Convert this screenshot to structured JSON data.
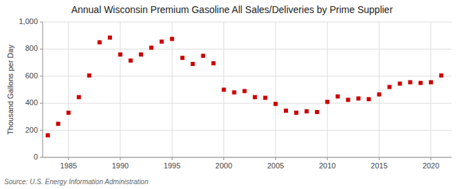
{
  "chart_data": {
    "type": "scatter",
    "title": "Annual Wisconsin Premium Gasoline All Sales/Deliveries by Prime Supplier",
    "ylabel": "Thousand Gallons per Day",
    "source": "Source: U.S. Energy Information Administration",
    "color": "#cc0000",
    "marker": "square",
    "grid": true,
    "x": [
      1983,
      1984,
      1985,
      1986,
      1987,
      1988,
      1989,
      1990,
      1991,
      1992,
      1993,
      1994,
      1995,
      1996,
      1997,
      1998,
      1999,
      2000,
      2001,
      2002,
      2003,
      2004,
      2005,
      2006,
      2007,
      2008,
      2009,
      2010,
      2011,
      2012,
      2013,
      2014,
      2015,
      2016,
      2017,
      2018,
      2019,
      2020,
      2021
    ],
    "values": [
      163,
      248,
      330,
      445,
      605,
      850,
      885,
      760,
      715,
      760,
      810,
      855,
      875,
      735,
      690,
      750,
      695,
      500,
      480,
      490,
      445,
      440,
      395,
      345,
      330,
      340,
      335,
      410,
      450,
      425,
      435,
      430,
      465,
      520,
      545,
      555,
      550,
      555,
      605
    ],
    "xlim": [
      1982.5,
      2022
    ],
    "xticks": [
      1985,
      1990,
      1995,
      2000,
      2005,
      2010,
      2015,
      2020
    ],
    "ylim": [
      0,
      1000
    ],
    "yticks": [
      0,
      200,
      400,
      600,
      800,
      {
        "value": 1000,
        "label": "1,000"
      }
    ]
  }
}
